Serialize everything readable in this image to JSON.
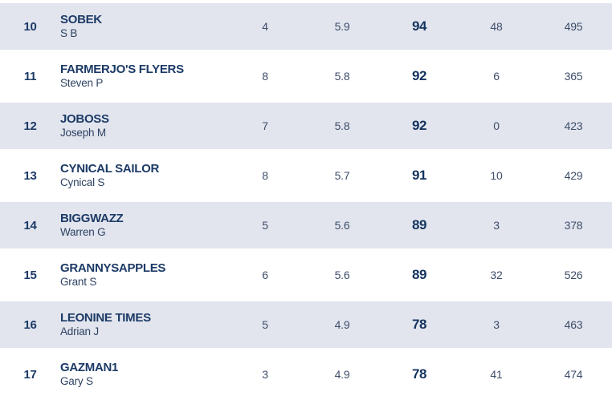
{
  "table": {
    "rows": [
      {
        "rank": "10",
        "team": "SOBEK",
        "manager": "S B",
        "stat1": "4",
        "stat2": "5.9",
        "points": "94",
        "stat4": "48",
        "stat5": "495"
      },
      {
        "rank": "11",
        "team": "FARMERJO'S FLYERS",
        "manager": "Steven P",
        "stat1": "8",
        "stat2": "5.8",
        "points": "92",
        "stat4": "6",
        "stat5": "365"
      },
      {
        "rank": "12",
        "team": "JOBOSS",
        "manager": "Joseph M",
        "stat1": "7",
        "stat2": "5.8",
        "points": "92",
        "stat4": "0",
        "stat5": "423"
      },
      {
        "rank": "13",
        "team": "CYNICAL SAILOR",
        "manager": "Cynical S",
        "stat1": "8",
        "stat2": "5.7",
        "points": "91",
        "stat4": "10",
        "stat5": "429"
      },
      {
        "rank": "14",
        "team": "BIGGWAZZ",
        "manager": "Warren G",
        "stat1": "5",
        "stat2": "5.6",
        "points": "89",
        "stat4": "3",
        "stat5": "378"
      },
      {
        "rank": "15",
        "team": "GRANNYSAPPLES",
        "manager": "Grant S",
        "stat1": "6",
        "stat2": "5.6",
        "points": "89",
        "stat4": "32",
        "stat5": "526"
      },
      {
        "rank": "16",
        "team": "LEONINE TIMES",
        "manager": "Adrian J",
        "stat1": "5",
        "stat2": "4.9",
        "points": "78",
        "stat4": "3",
        "stat5": "463"
      },
      {
        "rank": "17",
        "team": "GAZMAN1",
        "manager": "Gary S",
        "stat1": "3",
        "stat2": "4.9",
        "points": "78",
        "stat4": "41",
        "stat5": "474"
      }
    ],
    "colors": {
      "alt_row_bg": "#e2e5ee",
      "team_text": "#1c3a66",
      "points_text": "#14335e",
      "manager_text": "#2e4263",
      "stat_text": "#3e4d69",
      "page_bg": "#ffffff"
    }
  }
}
